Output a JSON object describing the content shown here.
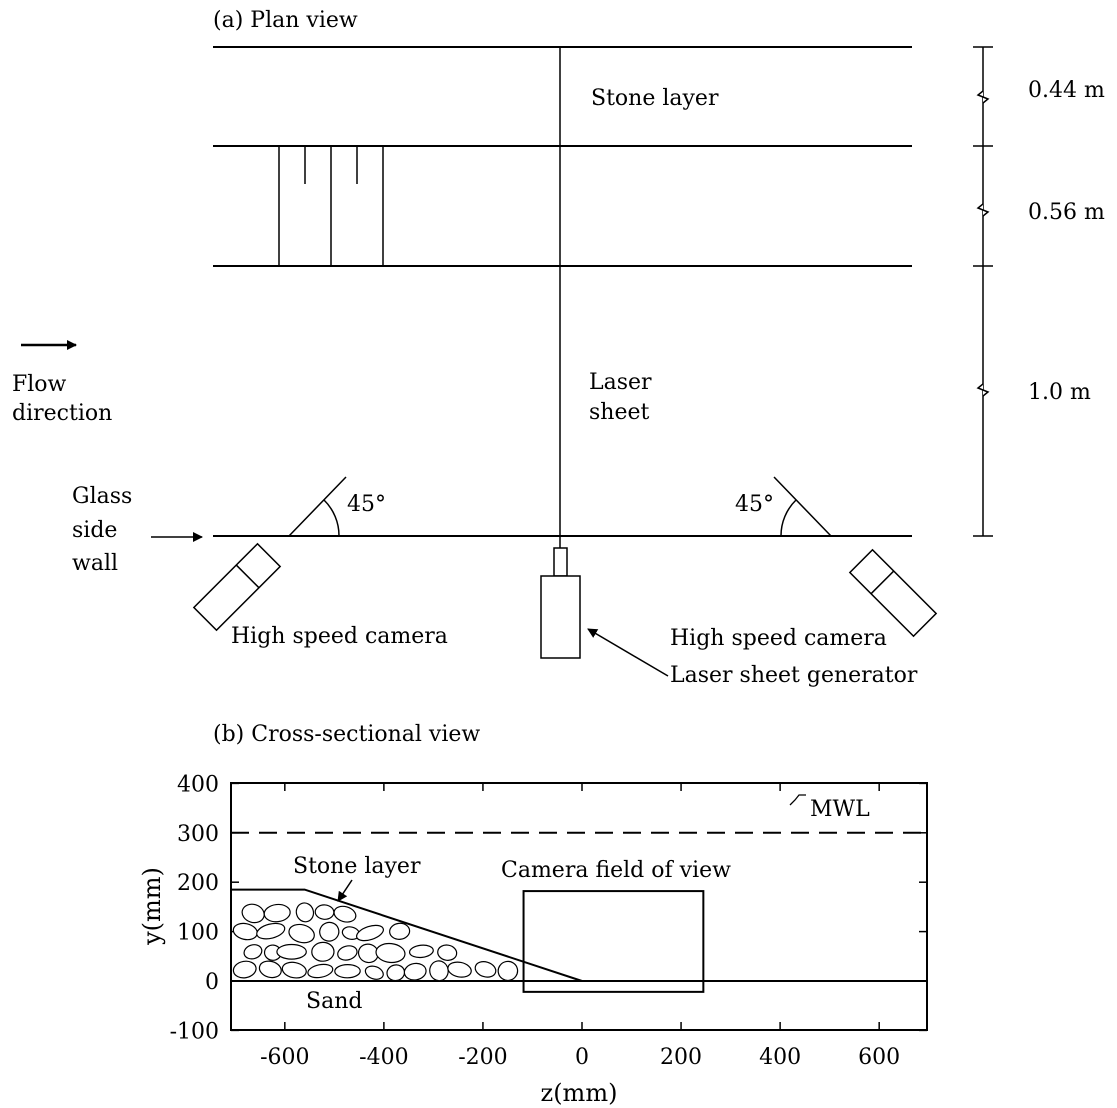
{
  "plan_view": {
    "title": "(a) Plan view",
    "stone_layer_label": "Stone layer",
    "laser_sheet_label_line1": "Laser",
    "laser_sheet_label_line2": "sheet",
    "flow_label_line1": "Flow",
    "flow_label_line2": "direction",
    "glass_label_line1": "Glass",
    "glass_label_line2": "side",
    "glass_label_line3": "wall",
    "angle_left": "45°",
    "angle_right": "45°",
    "camera_left_label": "High speed camera",
    "camera_right_label": "High speed camera",
    "generator_label": "Laser sheet generator",
    "dimensions": [
      "0.44 m",
      "0.56 m",
      "1.0 m"
    ]
  },
  "cross_section": {
    "title": "(b) Cross-sectional view",
    "mwl_label": "MWL",
    "stone_layer_label": "Stone layer",
    "camera_fov_label": "Camera field of  view",
    "sand_label": "Sand",
    "xlabel": "z(mm)",
    "ylabel": "y(mm)",
    "x_ticks": [
      "-600",
      "-400",
      "-200",
      "0",
      "200",
      "400",
      "600"
    ],
    "y_ticks": [
      "400",
      "300",
      "200",
      "100",
      "0",
      "-100"
    ],
    "xlim": [
      -710,
      700
    ],
    "ylim": [
      -100,
      400
    ],
    "mwl_y": 300,
    "stone_crest_y": 185,
    "stone_crest_z_end": -560,
    "stone_toe_z": 0,
    "camera_fov_z": [
      -118,
      245
    ],
    "camera_fov_y": [
      -22,
      182
    ]
  }
}
